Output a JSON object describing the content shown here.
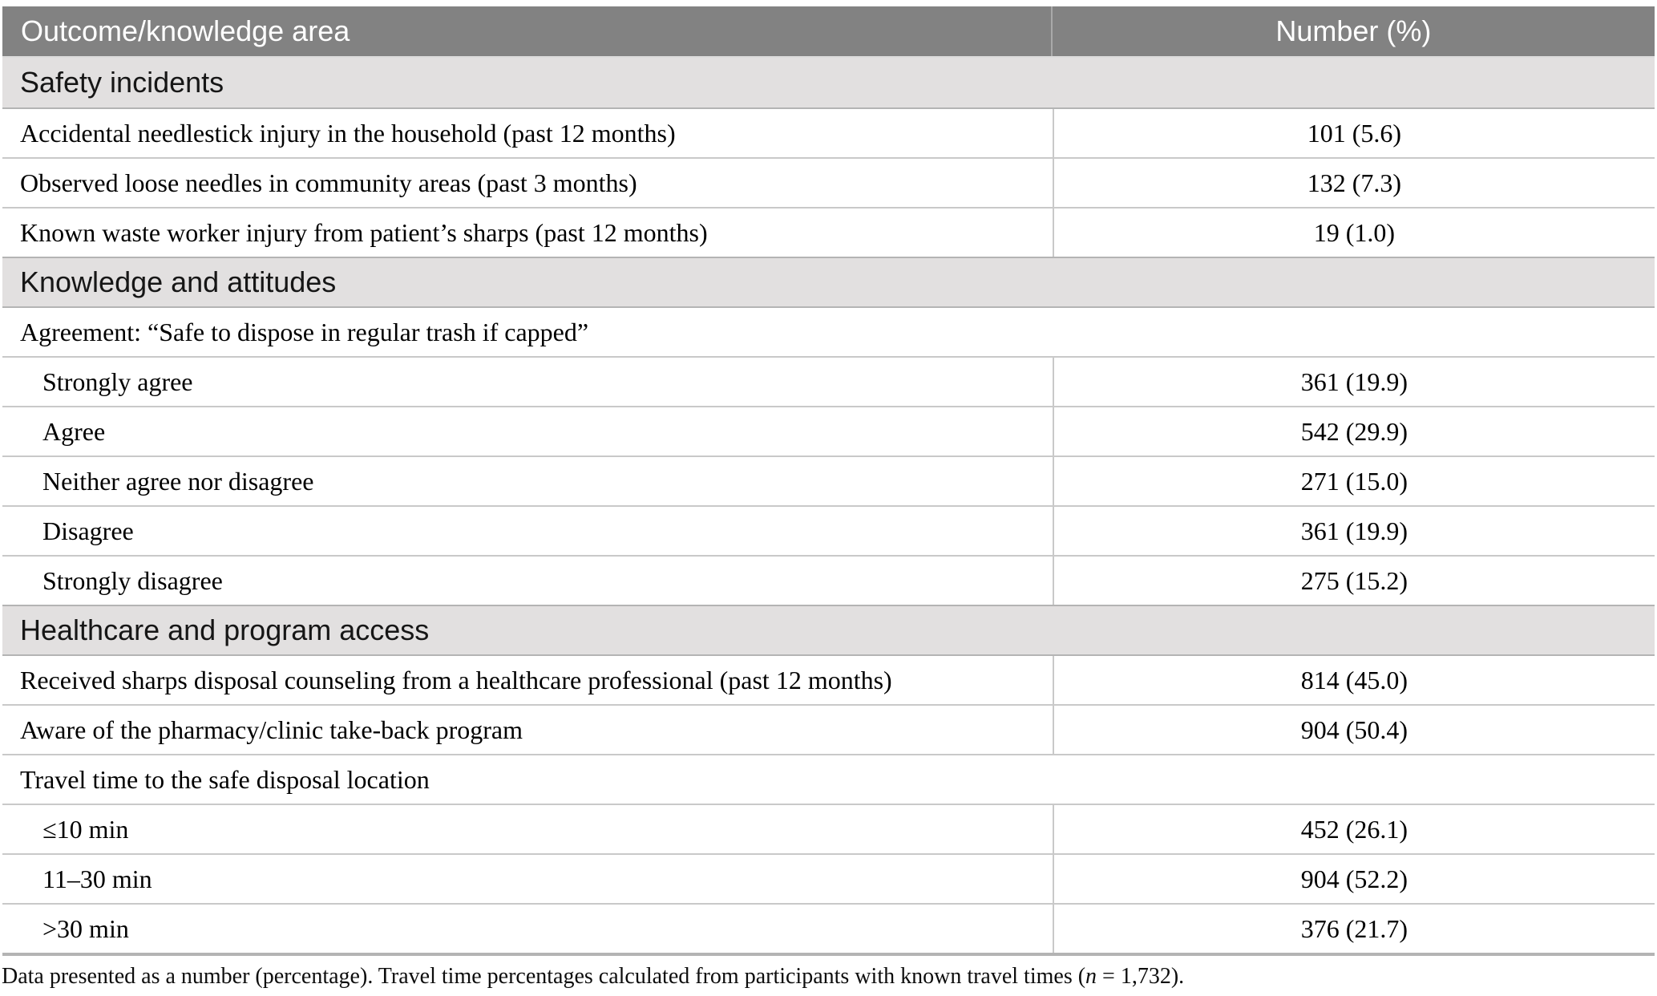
{
  "table": {
    "columns": [
      "Outcome/knowledge area",
      "Number (%)"
    ],
    "rows": [
      {
        "type": "section",
        "label": "Safety incidents"
      },
      {
        "type": "data",
        "label": "Accidental needlestick injury in the household (past 12 months)",
        "value": "101 (5.6)"
      },
      {
        "type": "data",
        "label": "Observed loose needles in community areas (past 3 months)",
        "value": "132 (7.3)"
      },
      {
        "type": "data",
        "label": "Known waste worker injury from patient’s sharps (past 12 months)",
        "value": "19 (1.0)"
      },
      {
        "type": "section",
        "label": "Knowledge and attitudes"
      },
      {
        "type": "span",
        "label": "Agreement: “Safe to dispose in regular trash if capped”"
      },
      {
        "type": "data-indent",
        "label": "Strongly agree",
        "value": "361 (19.9)"
      },
      {
        "type": "data-indent",
        "label": "Agree",
        "value": "542 (29.9)"
      },
      {
        "type": "data-indent",
        "label": "Neither agree nor disagree",
        "value": "271 (15.0)"
      },
      {
        "type": "data-indent",
        "label": "Disagree",
        "value": "361 (19.9)"
      },
      {
        "type": "data-indent",
        "label": "Strongly disagree",
        "value": "275 (15.2)"
      },
      {
        "type": "section",
        "label": "Healthcare and program access"
      },
      {
        "type": "data",
        "label": "Received sharps disposal counseling from a healthcare professional (past 12 months)",
        "value": "814 (45.0)"
      },
      {
        "type": "data",
        "label": "Aware of the pharmacy/clinic take-back program",
        "value": "904 (50.4)"
      },
      {
        "type": "span",
        "label": "Travel time to the safe disposal location"
      },
      {
        "type": "data-indent",
        "label": "≤10 min",
        "value": "452 (26.1)"
      },
      {
        "type": "data-indent",
        "label": "11–30 min",
        "value": "904 (52.2)"
      },
      {
        "type": "data-indent",
        "label": ">30 min",
        "value": "376 (21.7)"
      }
    ]
  },
  "footnote": {
    "part1": "Data presented as a number (percentage). Travel time percentages calculated from participants with known travel times (",
    "n_symbol": "n",
    "part2": " = 1,732)."
  }
}
